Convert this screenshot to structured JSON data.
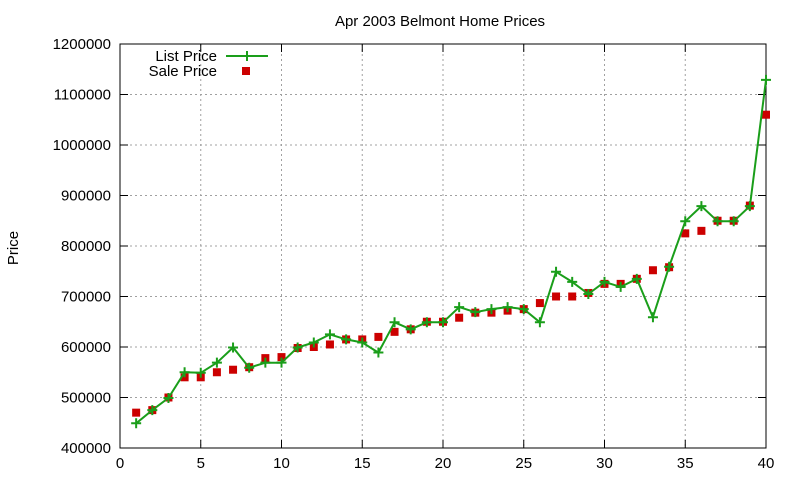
{
  "chart_data": {
    "type": "line",
    "title": "Apr 2003 Belmont Home Prices",
    "xlabel": "",
    "ylabel": "Price",
    "xlim": [
      0,
      40
    ],
    "ylim": [
      400000,
      1200000
    ],
    "x_ticks": [
      "0",
      "5",
      "10",
      "15",
      "20",
      "25",
      "30",
      "35",
      "40"
    ],
    "y_ticks": [
      "400000",
      "500000",
      "600000",
      "700000",
      "800000",
      "900000",
      "1000000",
      "1100000",
      "1200000"
    ],
    "grid": true,
    "legend_position": "top-left",
    "x": [
      1,
      2,
      3,
      4,
      5,
      6,
      7,
      8,
      9,
      10,
      11,
      12,
      13,
      14,
      15,
      16,
      17,
      18,
      19,
      20,
      21,
      22,
      23,
      24,
      25,
      26,
      27,
      28,
      29,
      30,
      31,
      32,
      33,
      34,
      35,
      36,
      37,
      38,
      39,
      40
    ],
    "series": [
      {
        "name": "List Price",
        "style": "line-with-plus-markers",
        "color": "#1a9e1a",
        "values": [
          449000,
          475000,
          499000,
          550000,
          549000,
          569000,
          599000,
          559000,
          569000,
          569000,
          599000,
          609000,
          625000,
          615000,
          609000,
          589000,
          649000,
          635000,
          649000,
          649000,
          679000,
          669000,
          675000,
          679000,
          675000,
          649000,
          749000,
          729000,
          705000,
          729000,
          719000,
          735000,
          659000,
          759000,
          849000,
          879000,
          849000,
          849000,
          879000,
          1129000
        ]
      },
      {
        "name": "Sale Price",
        "style": "square-markers",
        "color": "#cc0000",
        "values": [
          470000,
          475000,
          500000,
          540000,
          540000,
          550000,
          555000,
          560000,
          578000,
          580000,
          598000,
          600000,
          605000,
          615000,
          615000,
          620000,
          630000,
          635000,
          650000,
          650000,
          658000,
          668000,
          668000,
          672000,
          675000,
          687000,
          700000,
          700000,
          707000,
          725000,
          725000,
          735000,
          752000,
          758000,
          825000,
          830000,
          850000,
          850000,
          880000,
          1060000
        ]
      }
    ]
  }
}
